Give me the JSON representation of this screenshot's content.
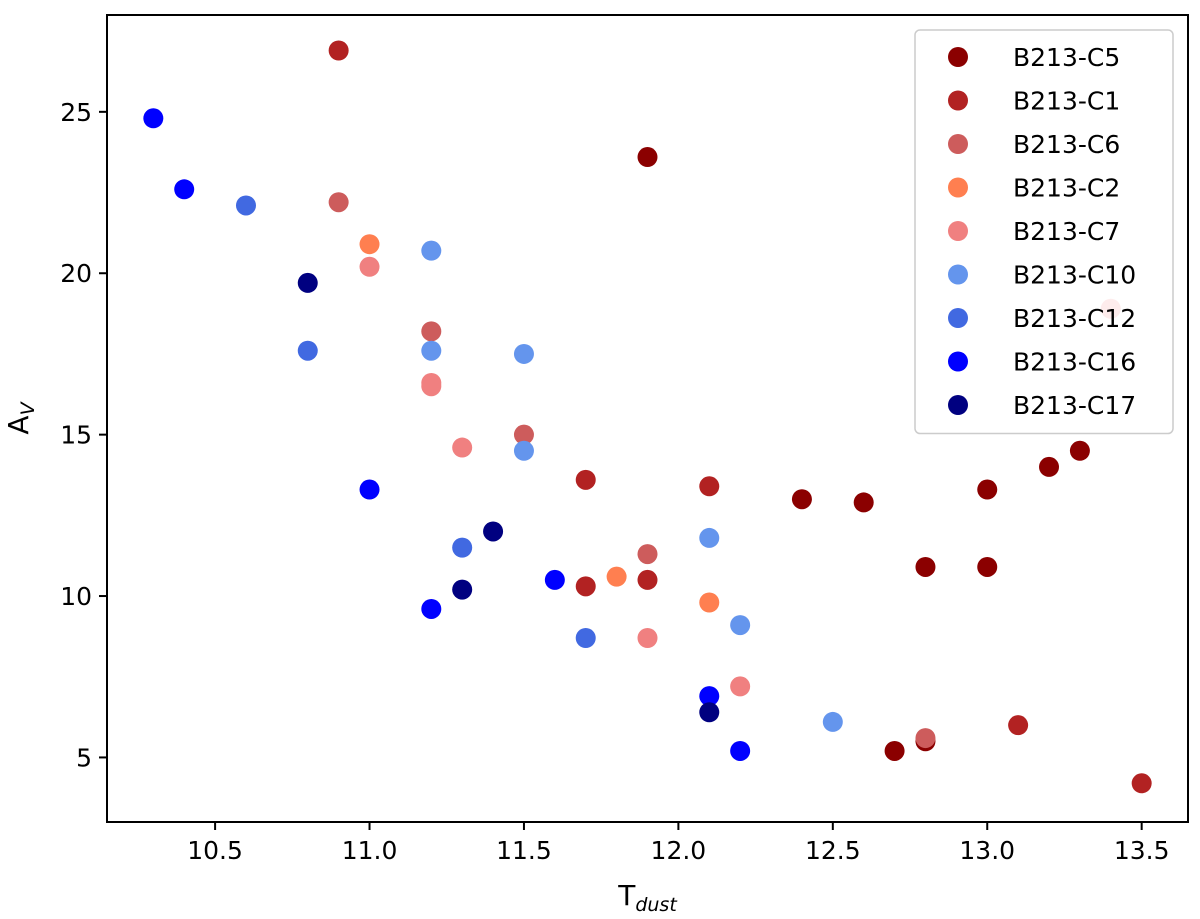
{
  "chart_data": {
    "type": "scatter",
    "title": "",
    "xlabel": "T",
    "xlabel_sub": "dust",
    "ylabel": "A",
    "ylabel_sub": "V",
    "xlim": [
      10.15,
      13.65
    ],
    "ylim": [
      3.0,
      28.0
    ],
    "xticks": [
      10.5,
      11.0,
      11.5,
      12.0,
      12.5,
      13.0,
      13.5
    ],
    "xtick_labels": [
      "10.5",
      "11.0",
      "11.5",
      "12.0",
      "12.5",
      "13.0",
      "13.5"
    ],
    "yticks": [
      5,
      10,
      15,
      20,
      25
    ],
    "ytick_labels": [
      "5",
      "10",
      "15",
      "20",
      "25"
    ],
    "grid": false,
    "legend_position": "top-right",
    "series": [
      {
        "name": "B213-C5",
        "color": "#8b0000",
        "points": [
          [
            11.9,
            23.6
          ],
          [
            12.4,
            13.0
          ],
          [
            12.6,
            12.9
          ],
          [
            12.8,
            10.9
          ],
          [
            13.0,
            10.9
          ],
          [
            13.0,
            13.3
          ],
          [
            13.2,
            14.0
          ],
          [
            13.3,
            14.5
          ],
          [
            12.7,
            5.2
          ],
          [
            12.8,
            5.5
          ]
        ]
      },
      {
        "name": "B213-C1",
        "color": "#b22222",
        "points": [
          [
            10.9,
            26.9
          ],
          [
            11.7,
            13.6
          ],
          [
            11.7,
            10.3
          ],
          [
            11.9,
            10.5
          ],
          [
            12.1,
            13.4
          ],
          [
            13.1,
            6.0
          ],
          [
            13.5,
            4.2
          ]
        ]
      },
      {
        "name": "B213-C6",
        "color": "#cd5c5c",
        "points": [
          [
            10.9,
            22.2
          ],
          [
            11.2,
            18.2
          ],
          [
            11.5,
            15.0
          ],
          [
            11.9,
            11.3
          ],
          [
            12.8,
            5.6
          ]
        ]
      },
      {
        "name": "B213-C2",
        "color": "#ff7f50",
        "points": [
          [
            11.0,
            20.9
          ],
          [
            11.8,
            10.6
          ],
          [
            12.1,
            9.8
          ]
        ]
      },
      {
        "name": "B213-C7",
        "color": "#f08080",
        "points": [
          [
            11.0,
            20.2
          ],
          [
            11.2,
            16.6
          ],
          [
            11.2,
            16.5
          ],
          [
            11.3,
            14.6
          ],
          [
            11.9,
            8.7
          ],
          [
            12.2,
            7.2
          ],
          [
            13.4,
            18.9
          ]
        ]
      },
      {
        "name": "B213-C10",
        "color": "#6495ed",
        "points": [
          [
            11.2,
            20.7
          ],
          [
            11.2,
            17.6
          ],
          [
            11.5,
            17.5
          ],
          [
            11.5,
            14.5
          ],
          [
            12.1,
            11.8
          ],
          [
            12.2,
            9.1
          ],
          [
            12.5,
            6.1
          ]
        ]
      },
      {
        "name": "B213-C12",
        "color": "#4169e1",
        "points": [
          [
            10.6,
            22.1
          ],
          [
            10.8,
            17.6
          ],
          [
            11.3,
            11.5
          ],
          [
            11.7,
            8.7
          ]
        ]
      },
      {
        "name": "B213-C16",
        "color": "#0000ff",
        "points": [
          [
            10.3,
            24.8
          ],
          [
            10.4,
            22.6
          ],
          [
            11.0,
            13.3
          ],
          [
            11.2,
            9.6
          ],
          [
            11.6,
            10.5
          ],
          [
            12.1,
            6.9
          ],
          [
            12.2,
            5.2
          ]
        ]
      },
      {
        "name": "B213-C17",
        "color": "#000080",
        "points": [
          [
            10.8,
            19.7
          ],
          [
            11.3,
            10.2
          ],
          [
            11.4,
            12.0
          ],
          [
            12.1,
            6.4
          ]
        ]
      }
    ]
  }
}
